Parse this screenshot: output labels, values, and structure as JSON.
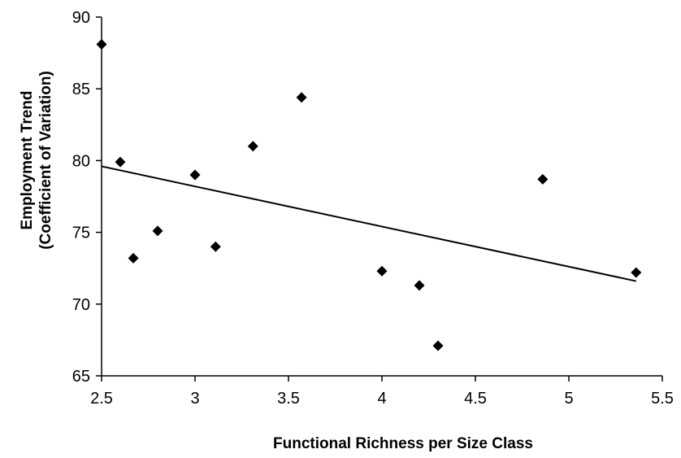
{
  "chart_data": {
    "type": "scatter",
    "title": "",
    "xlabel": "Functional Richness per Size Class",
    "ylabel_lines": [
      "Employment Trend",
      "(Coefficient of Variation)"
    ],
    "xlim": [
      2.5,
      5.5
    ],
    "ylim": [
      65,
      90
    ],
    "xticks": [
      2.5,
      3,
      3.5,
      4,
      4.5,
      5,
      5.5
    ],
    "yticks": [
      65,
      70,
      75,
      80,
      85,
      90
    ],
    "xtick_labels": [
      "2.5",
      "3",
      "3.5",
      "4",
      "4.5",
      "5",
      "5.5"
    ],
    "ytick_labels": [
      "65",
      "70",
      "75",
      "80",
      "85",
      "90"
    ],
    "grid": false,
    "legend": "none",
    "series": [
      {
        "marker": "diamond",
        "color": "#000000",
        "points": [
          {
            "x": 2.5,
            "y": 88.1
          },
          {
            "x": 2.6,
            "y": 79.9
          },
          {
            "x": 2.67,
            "y": 73.2
          },
          {
            "x": 2.8,
            "y": 75.1
          },
          {
            "x": 3.0,
            "y": 79.0
          },
          {
            "x": 3.11,
            "y": 74.0
          },
          {
            "x": 3.31,
            "y": 81.0
          },
          {
            "x": 3.57,
            "y": 84.4
          },
          {
            "x": 4.0,
            "y": 72.3
          },
          {
            "x": 4.2,
            "y": 71.3
          },
          {
            "x": 4.3,
            "y": 67.1
          },
          {
            "x": 4.86,
            "y": 78.7
          },
          {
            "x": 5.36,
            "y": 72.2
          }
        ]
      }
    ],
    "trendline": {
      "type": "linear",
      "color": "#000000",
      "start": {
        "x": 2.5,
        "y": 79.6
      },
      "end": {
        "x": 5.36,
        "y": 71.6
      }
    }
  }
}
